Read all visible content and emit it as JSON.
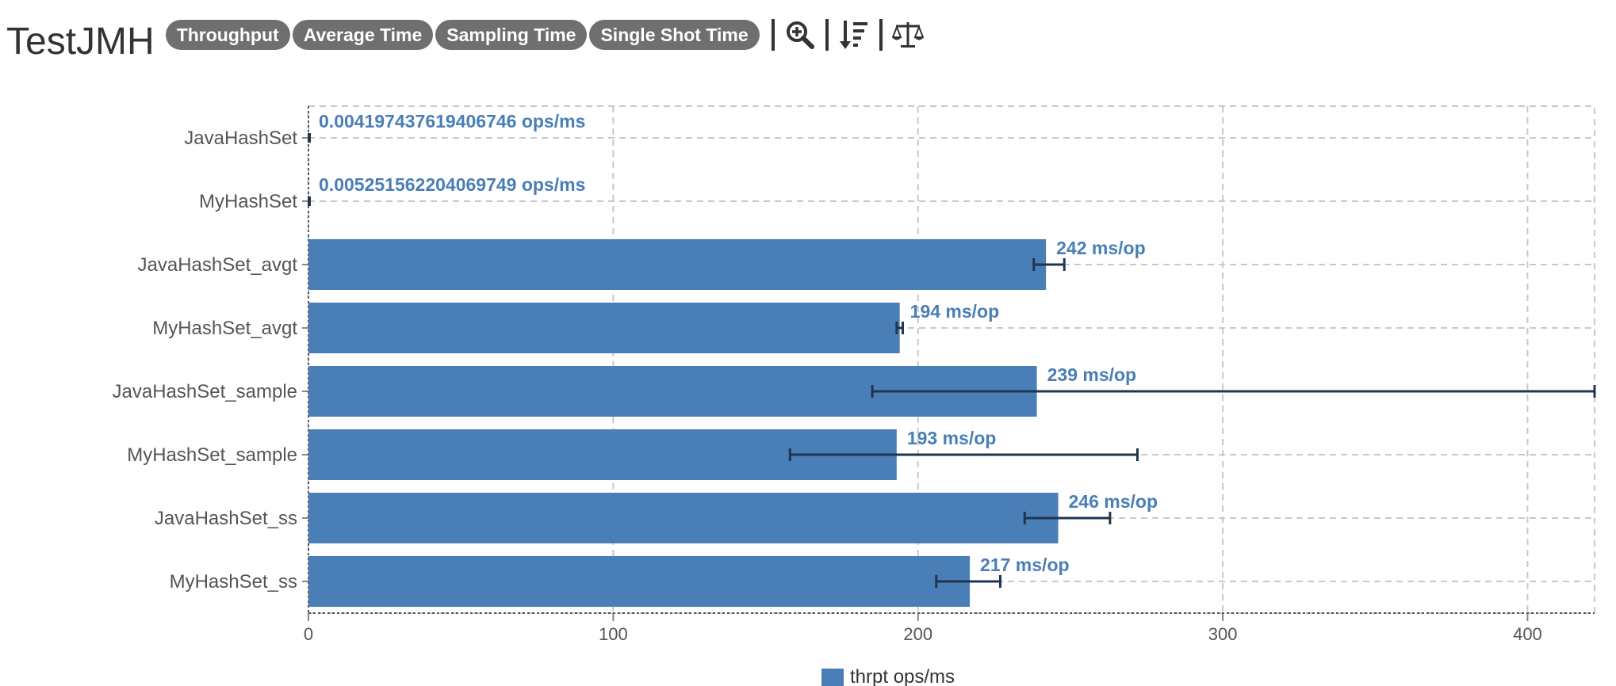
{
  "header": {
    "title": "TestJMH",
    "modes": [
      "Throughput",
      "Average Time",
      "Sampling Time",
      "Single Shot Time"
    ],
    "tools": [
      "zoom-in-icon",
      "sort-descending-icon",
      "balance-scale-icon"
    ]
  },
  "chart_data": {
    "type": "bar",
    "orientation": "horizontal",
    "categories": [
      "JavaHashSet",
      "MyHashSet",
      "JavaHashSet_avgt",
      "MyHashSet_avgt",
      "JavaHashSet_sample",
      "MyHashSet_sample",
      "JavaHashSet_ss",
      "MyHashSet_ss"
    ],
    "values": [
      0.004197437619406746,
      0.005251562204069749,
      242,
      194,
      239,
      193,
      246,
      217
    ],
    "value_labels": [
      "0.004197437619406746 ops/ms",
      "0.005251562204069749 ops/ms",
      "242 ms/op",
      "194 ms/op",
      "239 ms/op",
      "193 ms/op",
      "246 ms/op",
      "217 ms/op"
    ],
    "error_bars": [
      [
        0,
        0
      ],
      [
        0,
        0
      ],
      [
        238,
        248
      ],
      [
        193,
        195
      ],
      [
        185,
        422
      ],
      [
        158,
        272
      ],
      [
        235,
        263
      ],
      [
        206,
        227
      ]
    ],
    "x_ticks": [
      0,
      100,
      200,
      300,
      400
    ],
    "xlim": [
      0,
      422
    ],
    "grid": true,
    "legend": {
      "position": "bottom",
      "entries": [
        {
          "name": "thrpt ops/ms",
          "color": "#4a7eb6"
        }
      ]
    },
    "colors": {
      "bar": "#4a7eb6",
      "error": "#1f3550",
      "grid": "#c8c8c8"
    }
  }
}
